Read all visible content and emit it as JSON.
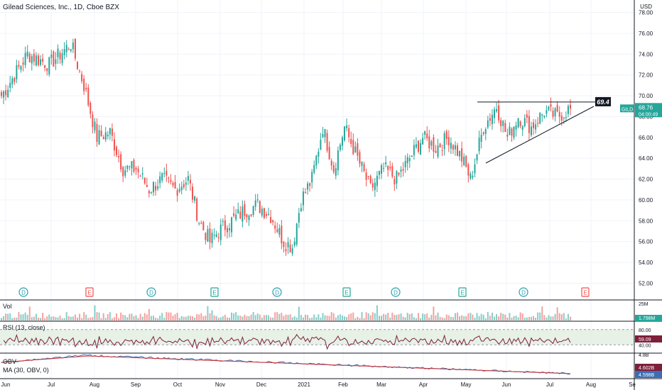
{
  "header": {
    "title": "Gilead Sciences, Inc., 1D, Cboe BZX",
    "currency": "USD"
  },
  "price_badge": {
    "symbol": "GILD",
    "price": "68.76",
    "countdown": "04:00:49"
  },
  "annotations": {
    "resistance_label": "69.4"
  },
  "indicators": {
    "vol": {
      "label": "Vol",
      "last": "1.798M",
      "axis_top": "25M"
    },
    "rsi": {
      "label": "RSI (13, close)",
      "last": "59.09",
      "upper": "80.00",
      "lower": "40.00"
    },
    "obv": {
      "label": "OBV",
      "ma_label": "MA (30, OBV, 0)",
      "top_tick": "4.8B",
      "obv_last": "4.602B",
      "ma_last": "4.598B"
    }
  },
  "colors": {
    "up": "#26a69a",
    "down": "#ef5350",
    "accent": "#2962ff",
    "rsi_fill": "#e1eee0",
    "obv_line": "#3a6db5",
    "ma_line": "#d32f2f",
    "badge_bg": "#26a69a",
    "dividend": "#26a0b0",
    "earnings_pos": "#26a69a",
    "earnings_neg": "#ef5350"
  },
  "chart_data": {
    "type": "candlestick",
    "title": "Gilead Sciences, Inc., 1D, Cboe BZX",
    "price_axis_ticks": [
      52,
      54,
      56,
      58,
      60,
      62,
      64,
      66,
      68,
      70,
      72,
      74,
      76,
      78
    ],
    "ylim": [
      50.6,
      79.2
    ],
    "time_labels": [
      "Jun",
      "Jul",
      "Aug",
      "Sep",
      "Oct",
      "Nov",
      "Dec",
      "2021",
      "Feb",
      "Mar",
      "Apr",
      "May",
      "Jun",
      "Jul",
      "Aug",
      "Se"
    ],
    "anchors": [
      [
        0,
        70
      ],
      [
        12,
        74
      ],
      [
        22,
        73
      ],
      [
        32,
        75
      ],
      [
        38,
        71
      ],
      [
        44,
        66
      ],
      [
        50,
        66.5
      ],
      [
        56,
        63
      ],
      [
        62,
        63
      ],
      [
        68,
        61
      ],
      [
        74,
        62
      ],
      [
        80,
        61
      ],
      [
        86,
        62
      ],
      [
        91,
        58
      ],
      [
        96,
        56
      ],
      [
        100,
        57
      ],
      [
        106,
        58
      ],
      [
        112,
        59
      ],
      [
        118,
        59.5
      ],
      [
        124,
        58.5
      ],
      [
        130,
        56
      ],
      [
        134,
        55.5
      ],
      [
        138,
        60
      ],
      [
        143,
        62
      ],
      [
        148,
        67
      ],
      [
        153,
        63
      ],
      [
        158,
        67
      ],
      [
        164,
        64
      ],
      [
        170,
        61
      ],
      [
        176,
        63
      ],
      [
        182,
        62
      ],
      [
        188,
        64
      ],
      [
        194,
        66
      ],
      [
        200,
        65
      ],
      [
        206,
        66
      ],
      [
        212,
        64
      ],
      [
        216,
        62
      ],
      [
        222,
        67
      ],
      [
        228,
        69
      ],
      [
        233,
        66
      ],
      [
        238,
        68
      ],
      [
        244,
        67
      ],
      [
        250,
        68.5
      ],
      [
        256,
        68
      ],
      [
        262,
        68.8
      ]
    ],
    "trendline_resistance": 69.4,
    "last_price": 68.76,
    "rsi_last": 59.09,
    "rsi_bands": [
      40,
      80
    ],
    "obv_last": "4.602B",
    "obv_ma_last": "4.598B",
    "volume_last": "1.798M",
    "events": [
      "D",
      "E",
      "D",
      "E",
      "D",
      "E",
      "D",
      "E",
      "D",
      "E"
    ]
  }
}
